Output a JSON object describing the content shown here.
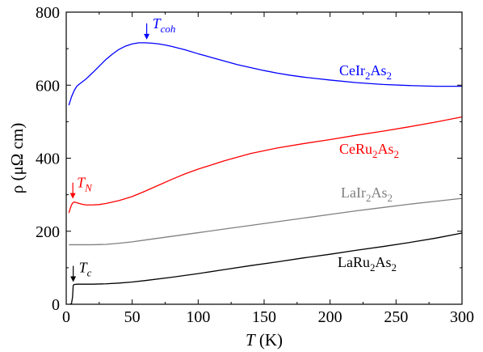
{
  "chart_data": {
    "type": "line",
    "xlabel_italic": "T",
    "xlabel_unit": "(K)",
    "ylabel": "ρ (μΩ cm)",
    "xlim": [
      0,
      300
    ],
    "ylim": [
      0,
      800
    ],
    "xticks": [
      0,
      50,
      100,
      150,
      200,
      250,
      300
    ],
    "yticks": [
      0,
      200,
      400,
      600,
      800
    ],
    "grid": false,
    "series": [
      {
        "label_main": "CeIr",
        "label_sub1": "2",
        "label_mid": "As",
        "label_sub2": "2",
        "color": "#0000ff",
        "x": [
          2,
          4,
          6,
          8,
          10,
          15,
          20,
          25,
          30,
          35,
          40,
          45,
          50,
          55,
          60,
          65,
          70,
          75,
          80,
          90,
          100,
          110,
          120,
          130,
          140,
          150,
          160,
          170,
          180,
          190,
          200,
          220,
          240,
          260,
          280,
          300
        ],
        "y": [
          545,
          568,
          585,
          597,
          603,
          617,
          634,
          652,
          670,
          685,
          698,
          707,
          713,
          716,
          716,
          715,
          713,
          710,
          706,
          697,
          686,
          676,
          666,
          656,
          648,
          640,
          633,
          627,
          622,
          618,
          614,
          607,
          602,
          599,
          597,
          597
        ]
      },
      {
        "label_main": "CeRu",
        "label_sub1": "2",
        "label_mid": "As",
        "label_sub2": "2",
        "color": "#ff0000",
        "x": [
          2,
          3,
          4,
          5,
          6,
          8,
          10,
          12,
          15,
          20,
          25,
          30,
          40,
          50,
          60,
          70,
          80,
          90,
          100,
          120,
          140,
          160,
          180,
          200,
          220,
          240,
          260,
          280,
          300
        ],
        "y": [
          250,
          262,
          272,
          278,
          280,
          278,
          276,
          274,
          272,
          272,
          273,
          276,
          284,
          295,
          310,
          326,
          342,
          357,
          370,
          393,
          413,
          428,
          440,
          451,
          463,
          474,
          486,
          499,
          513
        ]
      },
      {
        "label_main": "LaIr",
        "label_sub1": "2",
        "label_mid": "As",
        "label_sub2": "2",
        "color": "#808080",
        "x": [
          2,
          10,
          20,
          30,
          40,
          50,
          60,
          80,
          100,
          120,
          140,
          160,
          180,
          200,
          220,
          240,
          260,
          280,
          300
        ],
        "y": [
          163,
          163,
          163,
          164,
          167,
          171,
          176,
          186,
          196,
          206,
          216,
          226,
          236,
          246,
          256,
          265,
          274,
          282,
          290
        ]
      },
      {
        "label_main": "LaRu",
        "label_sub1": "2",
        "label_mid": "As",
        "label_sub2": "2",
        "color": "#000000",
        "x": [
          3,
          4,
          4.8,
          5.3,
          6,
          8,
          10,
          20,
          30,
          40,
          50,
          60,
          80,
          100,
          120,
          140,
          160,
          180,
          200,
          220,
          240,
          260,
          280,
          300
        ],
        "y": [
          0,
          2,
          20,
          52,
          54,
          55,
          55,
          55,
          56,
          58,
          61,
          65,
          74,
          84,
          95,
          106,
          116,
          127,
          137,
          148,
          158,
          169,
          181,
          195
        ]
      }
    ],
    "markers": [
      {
        "label_main": "T",
        "label_sub": "coh",
        "color": "#0000ff",
        "x": 61,
        "y": 716
      },
      {
        "label_main": "T",
        "label_sub": "N",
        "color": "#ff0000",
        "x": 5,
        "y": 280
      },
      {
        "label_main": "T",
        "label_sub": "c",
        "color": "#000000",
        "x": 5.3,
        "y": 52
      }
    ]
  }
}
